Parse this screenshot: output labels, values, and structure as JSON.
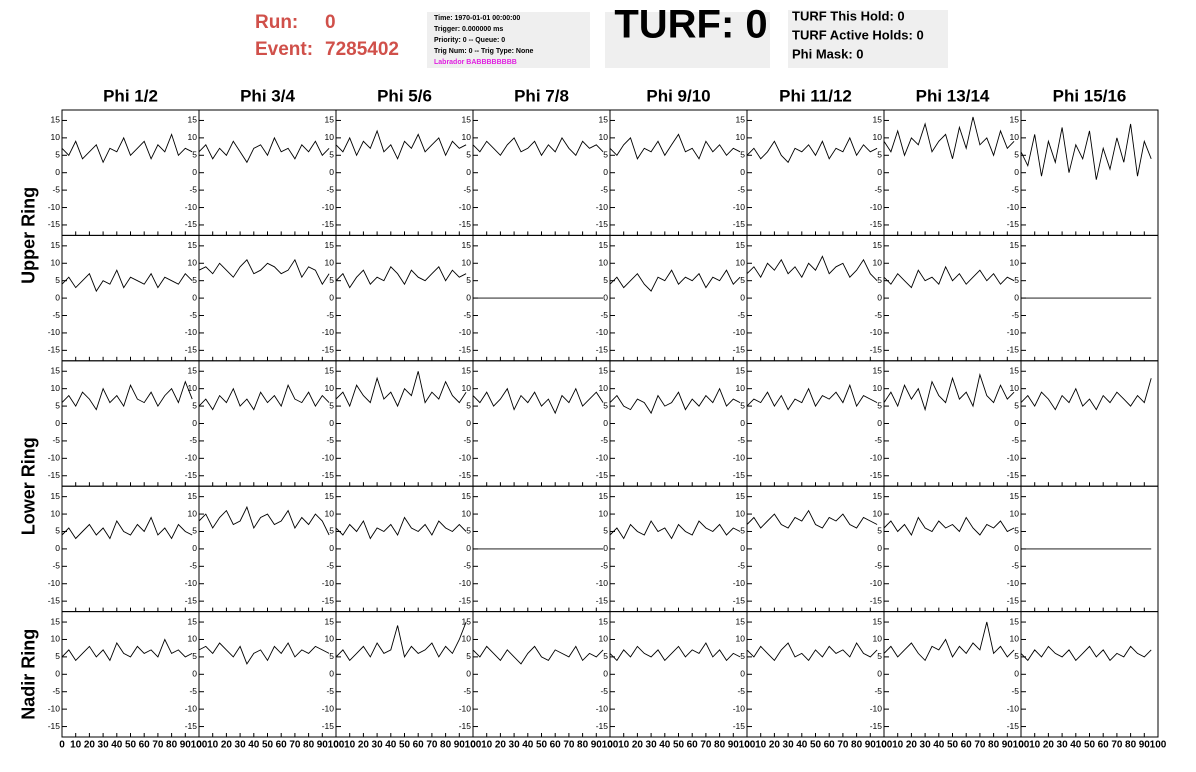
{
  "header": {
    "run_label": "Run:",
    "run": 0,
    "event_label": "Event:",
    "event": 7285402,
    "info": [
      "Time: 1970-01-01 00:00:00",
      "Trigger: 0.000000 ms",
      "Priority: 0 -- Queue: 0",
      "Trig Num: 0 -- Trig Type: None"
    ],
    "labrador": "Labrador BABBBBBBBB",
    "turf": "TURF: 0",
    "turf_info": [
      "TURF This Hold: 0",
      "TURF Active Holds: 0",
      "Phi Mask: 0"
    ]
  },
  "chart_data": {
    "type": "line",
    "color": "#000000",
    "columns": [
      "Phi 1/2",
      "Phi 3/4",
      "Phi 5/6",
      "Phi 7/8",
      "Phi 9/10",
      "Phi 11/12",
      "Phi 13/14",
      "Phi 15/16"
    ],
    "rings": [
      "Upper Ring",
      "Lower Ring",
      "Nadir Ring"
    ],
    "xlim": [
      0,
      100
    ],
    "xticks": [
      0,
      10,
      20,
      30,
      40,
      50,
      60,
      70,
      80,
      90,
      100
    ],
    "ylim": [
      -18,
      18
    ],
    "yticks": [
      -15,
      -10,
      -5,
      0,
      5,
      10,
      15
    ],
    "x": [
      0,
      5,
      10,
      15,
      20,
      25,
      30,
      35,
      40,
      45,
      50,
      55,
      60,
      65,
      70,
      75,
      80,
      85,
      90,
      95
    ],
    "panels": [
      [
        [
          7,
          5,
          9,
          4,
          6,
          8,
          3,
          7,
          6,
          10,
          5,
          7,
          9,
          4,
          8,
          6,
          11,
          5,
          7,
          6
        ],
        [
          6,
          8,
          4,
          7,
          5,
          9,
          6,
          3,
          7,
          8,
          5,
          10,
          6,
          7,
          4,
          8,
          6,
          9,
          5,
          7
        ],
        [
          8,
          6,
          10,
          5,
          9,
          7,
          12,
          6,
          8,
          4,
          9,
          7,
          11,
          6,
          8,
          10,
          5,
          9,
          7,
          8
        ],
        [
          8,
          6,
          9,
          7,
          5,
          8,
          10,
          6,
          7,
          9,
          5,
          8,
          6,
          10,
          7,
          5,
          9,
          7,
          8,
          6
        ],
        [
          7,
          5,
          8,
          10,
          4,
          7,
          6,
          9,
          5,
          8,
          11,
          6,
          7,
          4,
          9,
          6,
          8,
          5,
          7,
          6
        ],
        [
          5,
          7,
          4,
          6,
          9,
          5,
          3,
          7,
          6,
          8,
          5,
          9,
          4,
          7,
          6,
          10,
          5,
          8,
          6,
          7
        ],
        [
          9,
          6,
          12,
          5,
          10,
          8,
          14,
          6,
          9,
          11,
          4,
          13,
          7,
          16,
          8,
          10,
          5,
          12,
          7,
          9
        ],
        [
          6,
          2,
          11,
          -1,
          9,
          3,
          13,
          0,
          8,
          4,
          12,
          -2,
          7,
          1,
          10,
          3,
          14,
          -1,
          9,
          4
        ]
      ],
      [
        [
          4,
          6,
          3,
          5,
          7,
          2,
          5,
          4,
          8,
          3,
          6,
          5,
          4,
          7,
          3,
          6,
          5,
          4,
          7,
          5
        ],
        [
          8,
          9,
          7,
          10,
          8,
          6,
          9,
          11,
          7,
          8,
          10,
          9,
          7,
          8,
          11,
          6,
          9,
          8,
          4,
          7
        ],
        [
          5,
          7,
          3,
          6,
          8,
          4,
          6,
          5,
          9,
          7,
          4,
          8,
          6,
          5,
          7,
          9,
          5,
          8,
          6,
          7
        ],
        [
          0,
          0,
          0,
          0,
          0,
          0,
          0,
          0,
          0,
          0,
          0,
          0,
          0,
          0,
          0,
          0,
          0,
          0,
          0,
          0
        ],
        [
          4,
          6,
          3,
          5,
          7,
          4,
          2,
          6,
          5,
          8,
          4,
          6,
          5,
          7,
          3,
          6,
          5,
          8,
          4,
          6
        ],
        [
          7,
          9,
          6,
          10,
          8,
          11,
          7,
          9,
          6,
          10,
          8,
          12,
          7,
          9,
          10,
          6,
          8,
          11,
          7,
          5
        ],
        [
          6,
          4,
          7,
          5,
          3,
          8,
          5,
          6,
          4,
          9,
          5,
          7,
          4,
          6,
          8,
          5,
          7,
          4,
          6,
          5
        ],
        [
          0,
          0,
          0,
          0,
          0,
          0,
          0,
          0,
          0,
          0,
          0,
          0,
          0,
          0,
          0,
          0,
          0,
          0,
          0,
          0
        ]
      ],
      [
        [
          6,
          8,
          5,
          9,
          7,
          4,
          10,
          6,
          8,
          5,
          11,
          7,
          6,
          9,
          5,
          8,
          10,
          6,
          12,
          7
        ],
        [
          5,
          7,
          4,
          8,
          6,
          10,
          5,
          7,
          4,
          9,
          6,
          8,
          5,
          11,
          7,
          6,
          9,
          5,
          8,
          6
        ],
        [
          7,
          9,
          5,
          11,
          8,
          6,
          13,
          7,
          9,
          5,
          10,
          8,
          15,
          6,
          9,
          7,
          12,
          8,
          6,
          9
        ],
        [
          8,
          6,
          9,
          5,
          7,
          10,
          4,
          8,
          6,
          9,
          5,
          7,
          3,
          8,
          6,
          10,
          5,
          7,
          9,
          6
        ],
        [
          6,
          8,
          5,
          4,
          7,
          6,
          3,
          8,
          5,
          6,
          9,
          4,
          7,
          5,
          8,
          6,
          10,
          5,
          7,
          6
        ],
        [
          5,
          7,
          6,
          9,
          5,
          8,
          4,
          7,
          6,
          10,
          5,
          8,
          7,
          9,
          6,
          11,
          5,
          8,
          7,
          6
        ],
        [
          6,
          9,
          5,
          11,
          7,
          10,
          4,
          12,
          8,
          6,
          13,
          7,
          9,
          5,
          14,
          8,
          6,
          11,
          7,
          9
        ],
        [
          6,
          8,
          5,
          9,
          7,
          4,
          8,
          6,
          10,
          5,
          7,
          4,
          8,
          6,
          9,
          7,
          5,
          8,
          6,
          13
        ]
      ],
      [
        [
          4,
          6,
          3,
          5,
          7,
          4,
          6,
          3,
          8,
          5,
          4,
          7,
          5,
          9,
          4,
          6,
          3,
          7,
          5,
          4
        ],
        [
          8,
          10,
          6,
          9,
          11,
          7,
          8,
          12,
          6,
          9,
          10,
          7,
          8,
          11,
          6,
          9,
          7,
          10,
          8,
          4
        ],
        [
          6,
          4,
          7,
          5,
          8,
          3,
          6,
          5,
          7,
          4,
          9,
          6,
          5,
          7,
          4,
          8,
          6,
          5,
          7,
          5
        ],
        [
          0,
          0,
          0,
          0,
          0,
          0,
          0,
          0,
          0,
          0,
          0,
          0,
          0,
          0,
          0,
          0,
          0,
          0,
          0,
          0
        ],
        [
          4,
          6,
          3,
          7,
          5,
          4,
          8,
          5,
          6,
          3,
          7,
          5,
          4,
          8,
          6,
          5,
          7,
          4,
          6,
          5
        ],
        [
          7,
          9,
          6,
          8,
          10,
          7,
          6,
          9,
          8,
          11,
          7,
          6,
          9,
          8,
          10,
          7,
          6,
          9,
          8,
          7
        ],
        [
          6,
          8,
          5,
          7,
          4,
          9,
          6,
          5,
          8,
          6,
          7,
          5,
          9,
          6,
          4,
          7,
          6,
          8,
          5,
          6
        ],
        [
          0,
          0,
          0,
          0,
          0,
          0,
          0,
          0,
          0,
          0,
          0,
          0,
          0,
          0,
          0,
          0,
          0,
          0,
          0,
          0
        ]
      ],
      [
        [
          5,
          7,
          4,
          6,
          8,
          5,
          7,
          4,
          9,
          6,
          5,
          8,
          6,
          7,
          5,
          10,
          6,
          7,
          5,
          6
        ],
        [
          7,
          8,
          6,
          9,
          7,
          5,
          8,
          3,
          6,
          7,
          4,
          8,
          6,
          9,
          5,
          7,
          6,
          8,
          7,
          6
        ],
        [
          5,
          7,
          4,
          6,
          8,
          5,
          9,
          6,
          7,
          14,
          5,
          8,
          6,
          7,
          9,
          5,
          8,
          6,
          10,
          15
        ],
        [
          7,
          5,
          8,
          6,
          4,
          7,
          5,
          3,
          6,
          8,
          5,
          4,
          7,
          6,
          5,
          8,
          4,
          6,
          5,
          7
        ],
        [
          6,
          4,
          7,
          5,
          8,
          6,
          5,
          7,
          4,
          6,
          8,
          5,
          7,
          6,
          9,
          5,
          7,
          4,
          6,
          5
        ],
        [
          7,
          5,
          8,
          6,
          4,
          7,
          9,
          5,
          6,
          4,
          7,
          5,
          8,
          6,
          7,
          5,
          9,
          6,
          5,
          7
        ],
        [
          6,
          8,
          5,
          7,
          9,
          6,
          4,
          8,
          7,
          10,
          5,
          8,
          6,
          9,
          7,
          15,
          6,
          8,
          5,
          7
        ],
        [
          6,
          4,
          7,
          5,
          8,
          6,
          5,
          7,
          4,
          6,
          8,
          5,
          7,
          4,
          6,
          5,
          8,
          6,
          5,
          7
        ]
      ]
    ]
  }
}
